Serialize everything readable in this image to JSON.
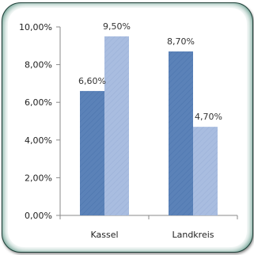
{
  "chart_data": {
    "type": "bar",
    "categories": [
      "Kassel",
      "Landkreis"
    ],
    "series": [
      {
        "values": [
          6.6,
          8.7
        ],
        "color": "#5b82b8"
      },
      {
        "values": [
          9.5,
          4.7
        ],
        "color": "#a9bde0"
      }
    ],
    "data_labels": [
      [
        "6,60%",
        "8,70%"
      ],
      [
        "9,50%",
        "4,70%"
      ]
    ],
    "y_ticks": [
      "0,00%",
      "2,00%",
      "4,00%",
      "6,00%",
      "8,00%",
      "10,00%"
    ],
    "ylim": [
      0,
      10
    ],
    "grid": false,
    "legend": "none",
    "title": "",
    "xlabel": "",
    "ylabel": ""
  }
}
